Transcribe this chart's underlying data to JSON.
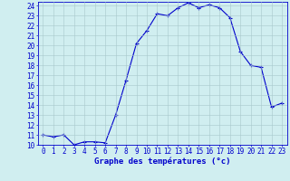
{
  "hours": [
    0,
    1,
    2,
    3,
    4,
    5,
    6,
    7,
    8,
    9,
    10,
    11,
    12,
    13,
    14,
    15,
    16,
    17,
    18,
    19,
    20,
    21,
    22,
    23
  ],
  "temperatures": [
    11.0,
    10.8,
    11.0,
    10.0,
    10.3,
    10.3,
    10.2,
    13.0,
    16.5,
    20.2,
    21.5,
    23.2,
    23.0,
    23.8,
    24.3,
    23.8,
    24.1,
    23.8,
    22.8,
    19.4,
    18.0,
    17.8,
    13.8,
    14.2
  ],
  "line_color": "#0000cc",
  "marker": "+",
  "marker_size": 3,
  "marker_linewidth": 0.8,
  "bg_color": "#d0eef0",
  "grid_color": "#a8c8cc",
  "xlabel": "Graphe des températures (°c)",
  "xlabel_color": "#0000cc",
  "tick_color": "#0000cc",
  "xlim": [
    -0.5,
    23.5
  ],
  "ylim": [
    10,
    24.4
  ],
  "yticks": [
    10,
    11,
    12,
    13,
    14,
    15,
    16,
    17,
    18,
    19,
    20,
    21,
    22,
    23,
    24
  ],
  "xticks": [
    0,
    1,
    2,
    3,
    4,
    5,
    6,
    7,
    8,
    9,
    10,
    11,
    12,
    13,
    14,
    15,
    16,
    17,
    18,
    19,
    20,
    21,
    22,
    23
  ],
  "tick_fontsize": 5.5,
  "xlabel_fontsize": 6.5,
  "linewidth": 0.8
}
